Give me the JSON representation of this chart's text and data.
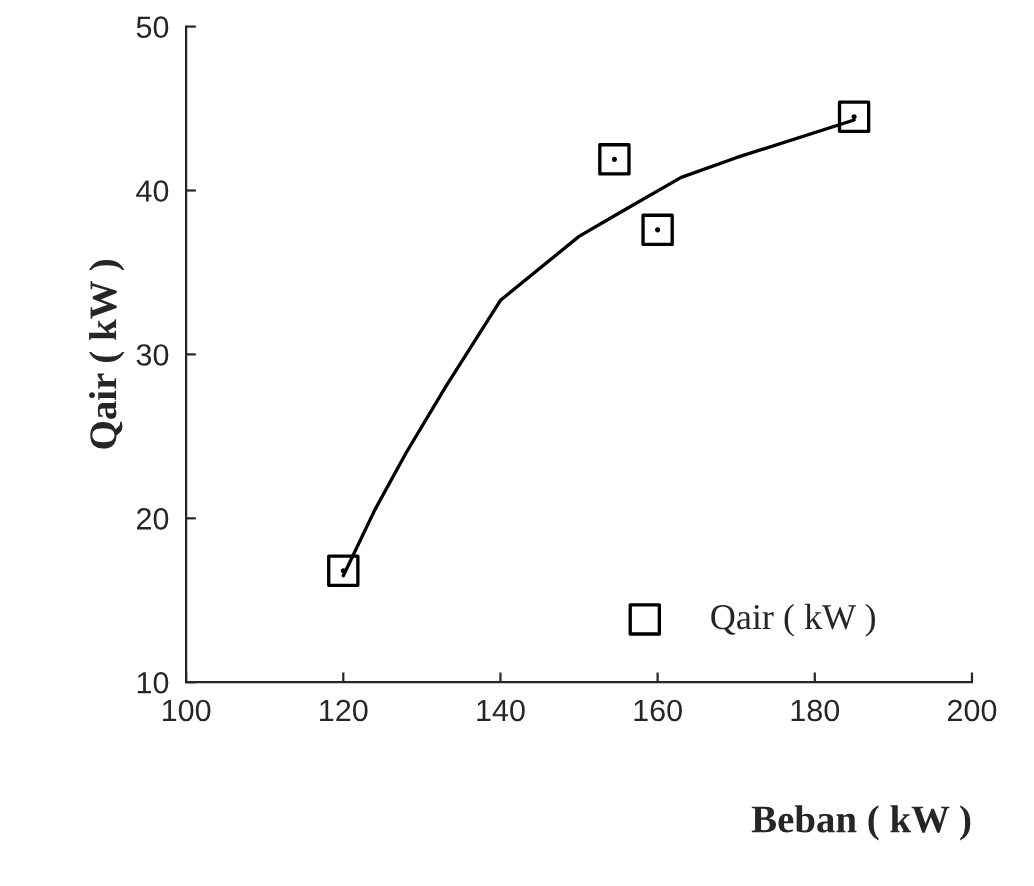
{
  "chart_data": {
    "type": "scatter",
    "xlabel": "Beban ( kW )",
    "ylabel": "Qair ( kW )",
    "xlim": [
      100,
      200
    ],
    "xticks": [
      100,
      120,
      140,
      160,
      180,
      200
    ],
    "ylim": [
      10,
      50
    ],
    "yticks": [
      10,
      20,
      30,
      40,
      50
    ],
    "grid": false,
    "legend": "bottom right",
    "series": [
      {
        "name": "Qair ( kW )",
        "marker": "square",
        "color": "#000000",
        "x": [
          120,
          154.5,
          160,
          185
        ],
        "values": [
          16.8,
          41.9,
          37.6,
          44.5
        ]
      },
      {
        "type": "line",
        "color": "#000000",
        "line_style": "solid",
        "x": [
          120,
          124,
          128,
          133,
          140,
          150,
          155,
          163,
          170,
          185
        ],
        "values": [
          16.5,
          20.5,
          24,
          28,
          33.3,
          37.2,
          38.6,
          40.8,
          42,
          44.3
        ]
      }
    ]
  }
}
